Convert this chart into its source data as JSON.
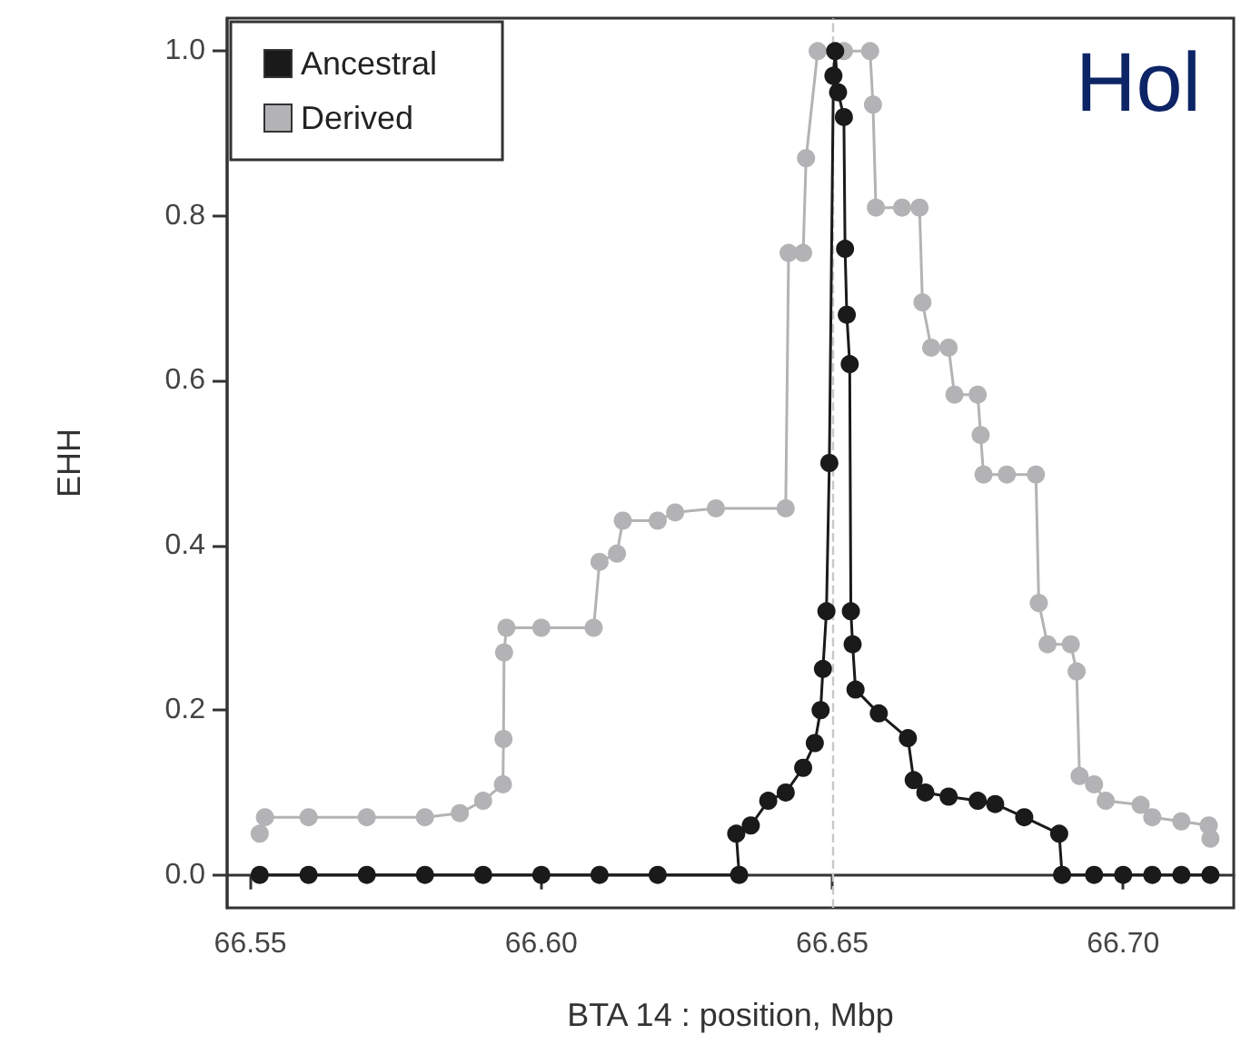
{
  "chart_data": {
    "type": "line",
    "xlabel": "BTA 14 : position, Mbp",
    "ylabel": "EHH",
    "annotations": [
      "Hol"
    ],
    "xlim": [
      66.546,
      66.719
    ],
    "xticks": [
      {
        "value": 66.55,
        "label": "66.55"
      },
      {
        "value": 66.6,
        "label": "66.60"
      },
      {
        "value": 66.65,
        "label": "66.65"
      },
      {
        "value": 66.7,
        "label": "66.70"
      }
    ],
    "ylim": [
      -0.04,
      1.04
    ],
    "yticks": [
      {
        "value": 0,
        "label": "0.0"
      },
      {
        "value": 0.2,
        "label": "0.2"
      },
      {
        "value": 0.4,
        "label": "0.4"
      },
      {
        "value": 0.6,
        "label": "0.6"
      },
      {
        "value": 0.8,
        "label": "0.8"
      },
      {
        "value": 1,
        "label": "1.0"
      }
    ],
    "grid": false,
    "legend": "top left",
    "marker": "circle",
    "line_style": "solid",
    "ref_lines": [
      {
        "axis": "x",
        "value": 66.65,
        "color": "#c8c8c8",
        "line_style": "dashed"
      }
    ],
    "series": [
      {
        "name": "Ancestral",
        "color": "#1a1a1a",
        "x": [
          66.5516,
          66.56,
          66.57,
          66.58,
          66.59,
          66.6,
          66.61,
          66.62,
          66.634,
          66.6335,
          66.636,
          66.639,
          66.642,
          66.645,
          66.647,
          66.648,
          66.6484,
          66.649,
          66.6495,
          66.6502,
          66.6505,
          66.651,
          66.652,
          66.6522,
          66.6525,
          66.653,
          66.6532,
          66.6535,
          66.654,
          66.658,
          66.663,
          66.664,
          66.666,
          66.67,
          66.675,
          66.678,
          66.683,
          66.689,
          66.6895,
          66.695,
          66.7,
          66.705,
          66.71,
          66.715
        ],
        "values": [
          0,
          0,
          0,
          0,
          0,
          0,
          0,
          0,
          0,
          0.05,
          0.06,
          0.09,
          0.1,
          0.13,
          0.16,
          0.2,
          0.25,
          0.32,
          0.5,
          0.97,
          1,
          0.95,
          0.92,
          0.76,
          0.68,
          0.62,
          0.32,
          0.28,
          0.225,
          0.196,
          0.166,
          0.115,
          0.1,
          0.095,
          0.09,
          0.086,
          0.07,
          0.05,
          0,
          0,
          0,
          0,
          0,
          0
        ]
      },
      {
        "name": "Derived",
        "color": "#b3b3b5",
        "x": [
          66.5516,
          66.5525,
          66.56,
          66.57,
          66.58,
          66.586,
          66.59,
          66.5934,
          66.5935,
          66.5936,
          66.594,
          66.6,
          66.609,
          66.61,
          66.613,
          66.614,
          66.62,
          66.623,
          66.63,
          66.642,
          66.6425,
          66.645,
          66.6455,
          66.6475,
          66.652,
          66.6565,
          66.657,
          66.6575,
          66.662,
          66.665,
          66.6655,
          66.667,
          66.67,
          66.671,
          66.675,
          66.6755,
          66.676,
          66.68,
          66.685,
          66.6855,
          66.687,
          66.691,
          66.692,
          66.6925,
          66.695,
          66.697,
          66.703,
          66.705,
          66.71,
          66.7147,
          66.715
        ],
        "values": [
          0.05,
          0.07,
          0.07,
          0.07,
          0.07,
          0.075,
          0.09,
          0.11,
          0.165,
          0.27,
          0.3,
          0.3,
          0.3,
          0.38,
          0.39,
          0.43,
          0.43,
          0.44,
          0.445,
          0.445,
          0.755,
          0.755,
          0.87,
          1,
          1,
          1,
          0.935,
          0.81,
          0.81,
          0.81,
          0.695,
          0.64,
          0.64,
          0.583,
          0.583,
          0.534,
          0.486,
          0.486,
          0.486,
          0.33,
          0.28,
          0.28,
          0.247,
          0.12,
          0.11,
          0.09,
          0.085,
          0.07,
          0.065,
          0.06,
          0.044
        ]
      }
    ]
  }
}
